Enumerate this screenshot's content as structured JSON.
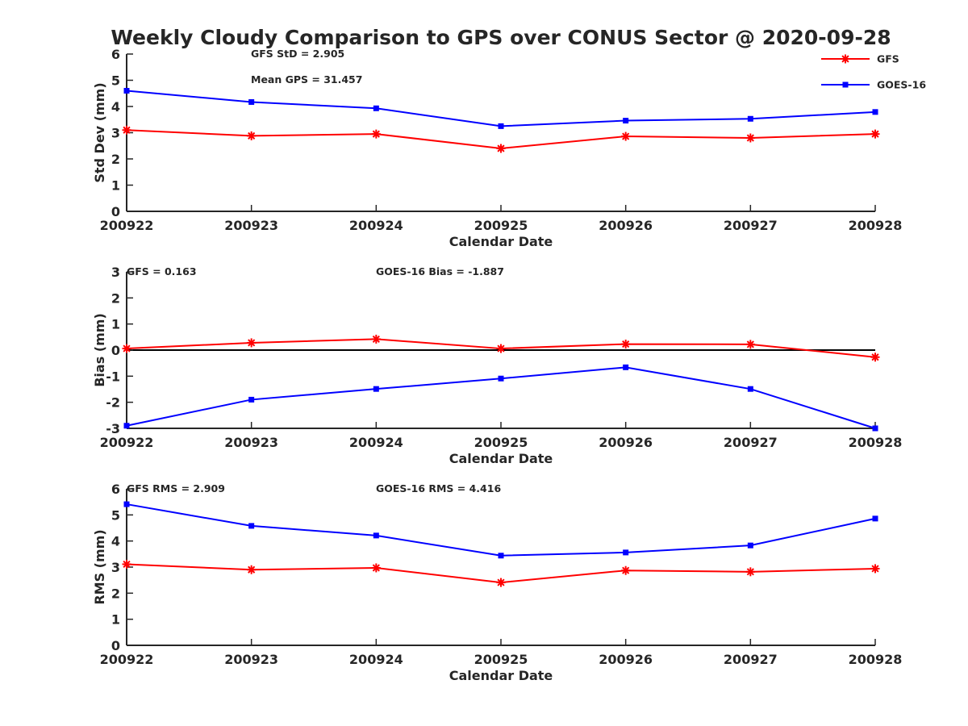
{
  "title": "Weekly Cloudy Comparison to GPS over CONUS Sector @ 2020-09-28",
  "legend": [
    {
      "name": "GFS",
      "color": "#ff0000",
      "marker": "asterisk"
    },
    {
      "name": "GOES-16",
      "color": "#0000ff",
      "marker": "square"
    }
  ],
  "chart_data": [
    {
      "type": "line",
      "ylabel": "Std Dev (mm)",
      "xlabel": "Calendar Date",
      "ylim": [
        0,
        6
      ],
      "yticks": [
        "0",
        "1",
        "2",
        "3",
        "4",
        "5",
        "6"
      ],
      "categories": [
        "200922",
        "200923",
        "200924",
        "200925",
        "200926",
        "200927",
        "200928"
      ],
      "series": [
        {
          "name": "GFS",
          "color": "#ff0000",
          "marker": "asterisk",
          "values": [
            3.1,
            2.88,
            2.95,
            2.4,
            2.86,
            2.8,
            2.95
          ]
        },
        {
          "name": "GOES-16",
          "color": "#0000ff",
          "marker": "square",
          "values": [
            4.6,
            4.17,
            3.93,
            3.25,
            3.46,
            3.53,
            3.79
          ]
        }
      ],
      "annotations": [
        "GFS StD = 2.905",
        "Mean GPS = 31.457"
      ],
      "zero_line": false
    },
    {
      "type": "line",
      "ylabel": "Bias (mm)",
      "xlabel": "Calendar Date",
      "ylim": [
        -3,
        3
      ],
      "yticks": [
        "-3",
        "-2",
        "-1",
        "0",
        "1",
        "2",
        "3"
      ],
      "categories": [
        "200922",
        "200923",
        "200924",
        "200925",
        "200926",
        "200927",
        "200928"
      ],
      "series": [
        {
          "name": "GFS",
          "color": "#ff0000",
          "marker": "asterisk",
          "values": [
            0.06,
            0.28,
            0.42,
            0.06,
            0.23,
            0.22,
            -0.27
          ]
        },
        {
          "name": "GOES-16",
          "color": "#0000ff",
          "marker": "square",
          "values": [
            -2.9,
            -1.9,
            -1.49,
            -1.09,
            -0.66,
            -1.49,
            -3.0
          ]
        }
      ],
      "annotations": [
        "GFS = 0.163",
        "GOES-16 Bias  = -1.887"
      ],
      "zero_line": true
    },
    {
      "type": "line",
      "ylabel": "RMS (mm)",
      "xlabel": "Calendar Date",
      "ylim": [
        0,
        6
      ],
      "yticks": [
        "0",
        "1",
        "2",
        "3",
        "4",
        "5",
        "6"
      ],
      "categories": [
        "200922",
        "200923",
        "200924",
        "200925",
        "200926",
        "200927",
        "200928"
      ],
      "series": [
        {
          "name": "GFS",
          "color": "#ff0000",
          "marker": "asterisk",
          "values": [
            3.11,
            2.9,
            2.97,
            2.41,
            2.87,
            2.82,
            2.94
          ]
        },
        {
          "name": "GOES-16",
          "color": "#0000ff",
          "marker": "square",
          "values": [
            5.41,
            4.58,
            4.21,
            3.44,
            3.56,
            3.83,
            4.86
          ]
        }
      ],
      "annotations": [
        "GFS RMS = 2.909",
        "GOES-16 RMS = 4.416"
      ],
      "zero_line": false
    }
  ]
}
